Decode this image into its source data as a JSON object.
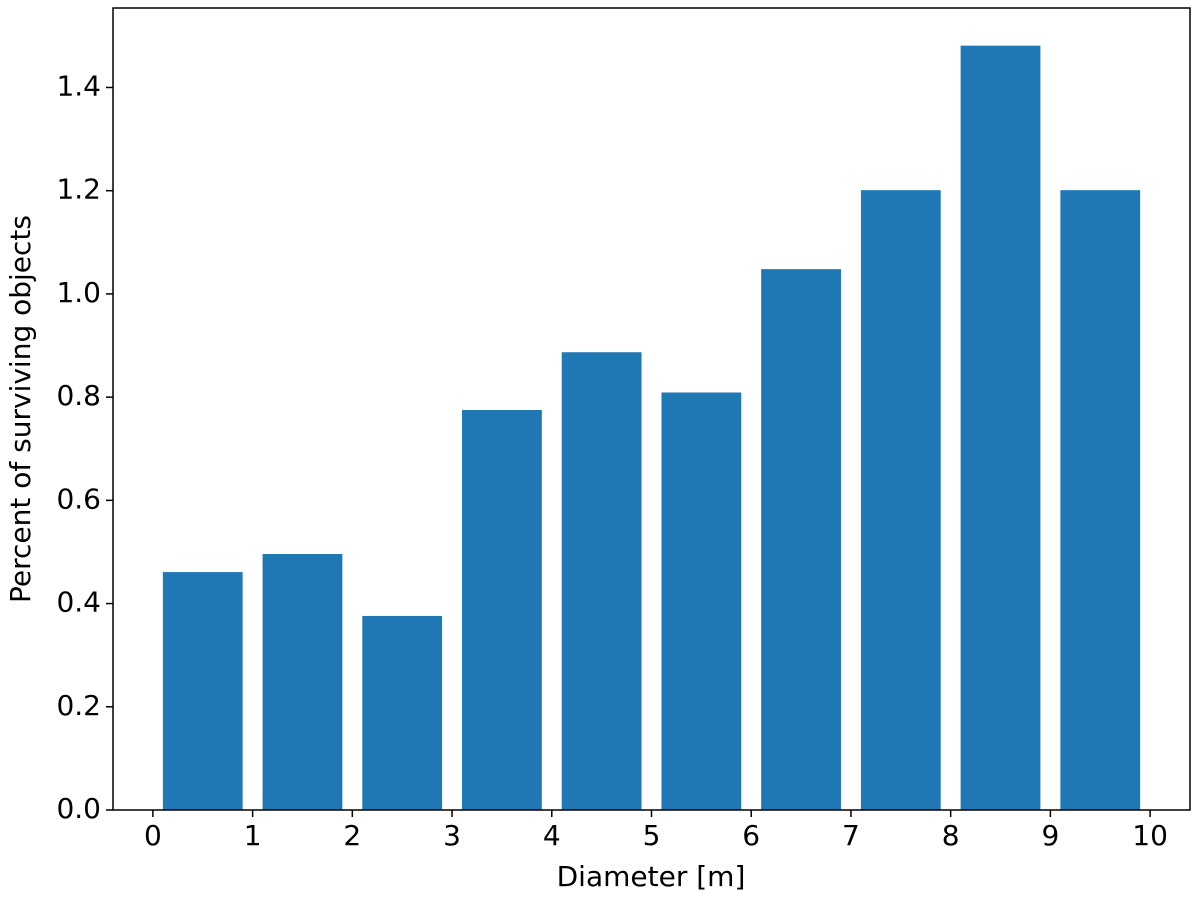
{
  "chart_data": {
    "type": "bar",
    "x_label": "Diameter [m]",
    "y_label": "Percent of surviving objects",
    "x": [
      0.5,
      1.5,
      2.5,
      3.5,
      4.5,
      5.5,
      6.5,
      7.5,
      8.5,
      9.5
    ],
    "values": [
      0.461,
      0.496,
      0.376,
      0.775,
      0.887,
      0.809,
      1.048,
      1.201,
      1.481,
      1.201
    ],
    "color": "#1f77b4",
    "xlim": [
      -0.4,
      10.4
    ],
    "xticks": [
      0,
      1,
      2,
      3,
      4,
      5,
      6,
      7,
      8,
      9,
      10
    ],
    "ylim": [
      0,
      1.554
    ],
    "yticks": [
      {
        "value": 0,
        "label": "0.0"
      },
      0.2,
      0.4,
      0.6,
      0.8,
      {
        "value": 1,
        "label": "1.0"
      },
      1.2,
      1.4
    ],
    "grid": false
  }
}
